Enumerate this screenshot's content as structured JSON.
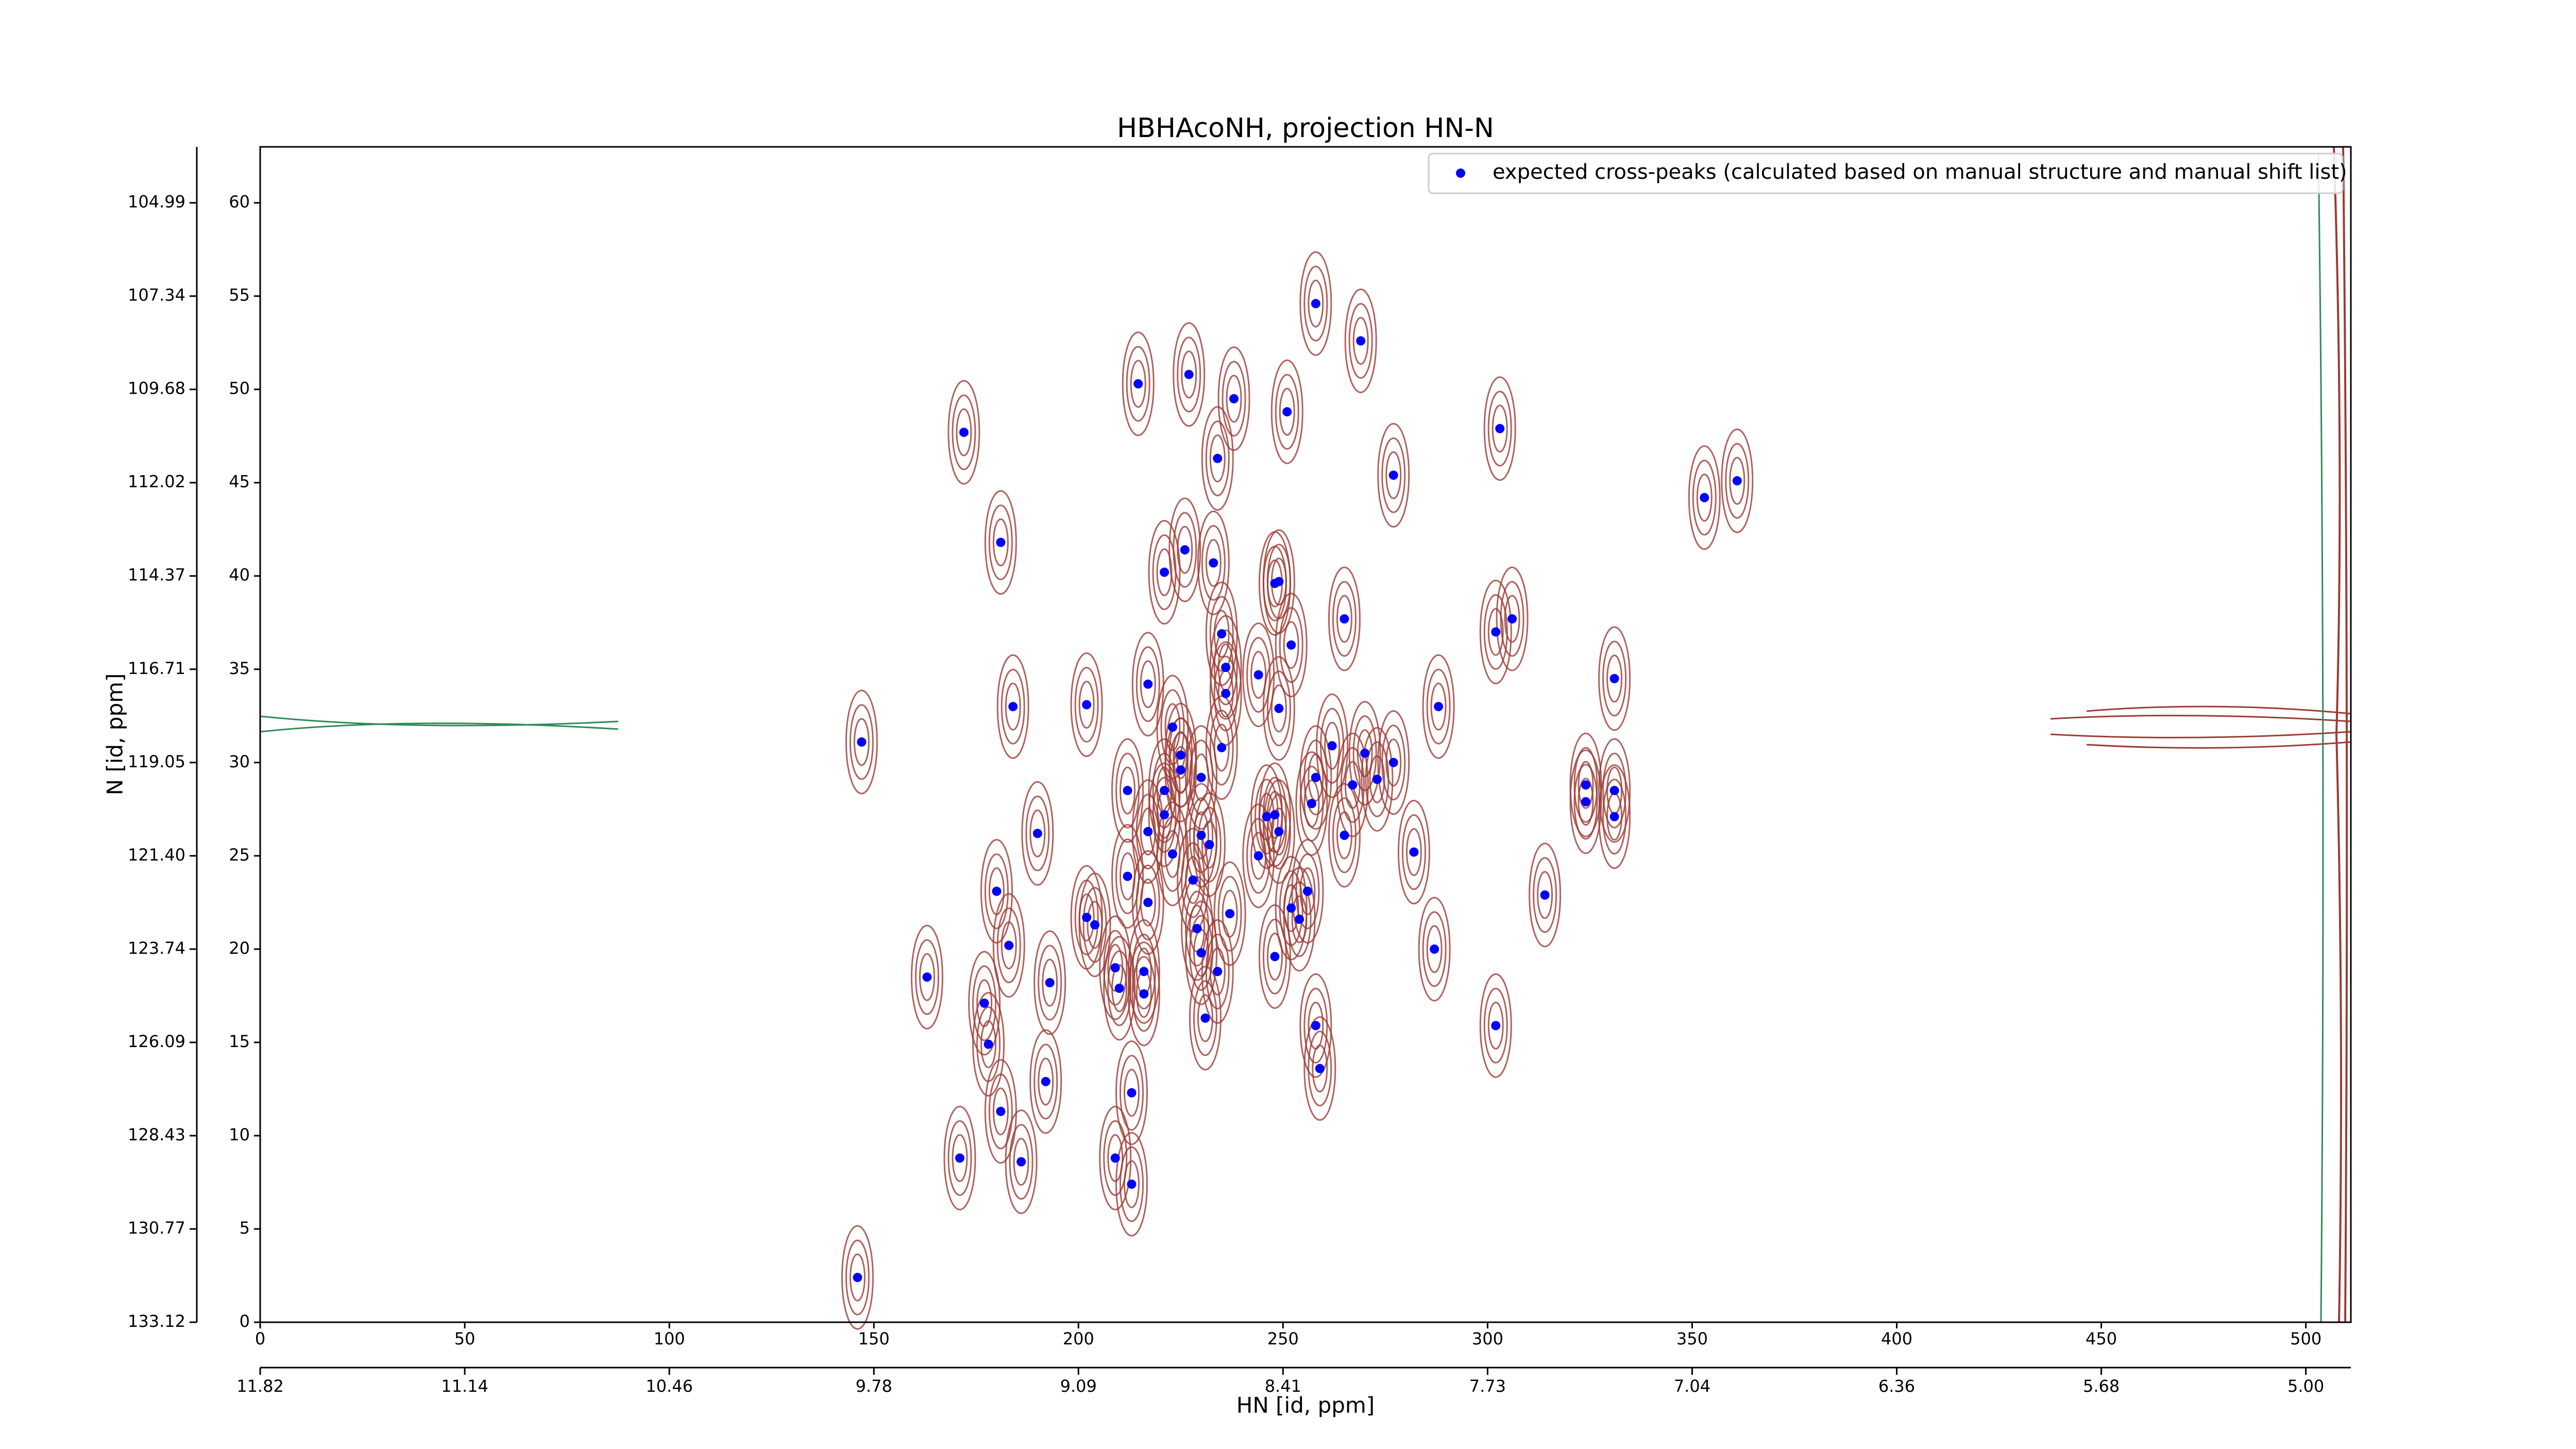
{
  "chart_data": {
    "type": "scatter",
    "title": "HBHAcoNH, projection HN-N",
    "x_label": "HN [id, ppm]",
    "y_label": "N [id, ppm]",
    "xlim": [
      0,
      511
    ],
    "ylim": [
      0,
      63
    ],
    "xticks": [
      0,
      50,
      100,
      150,
      200,
      250,
      300,
      350,
      400,
      450,
      500
    ],
    "yticks": [
      0,
      5,
      10,
      15,
      20,
      25,
      30,
      35,
      40,
      45,
      50,
      55,
      60
    ],
    "x2ticks": [
      {
        "value": 0,
        "label": "11.82"
      },
      {
        "value": 50,
        "label": "11.14"
      },
      {
        "value": 100,
        "label": "10.46"
      },
      {
        "value": 150,
        "label": "9.78"
      },
      {
        "value": 200,
        "label": "9.09"
      },
      {
        "value": 250,
        "label": "8.41"
      },
      {
        "value": 300,
        "label": "7.73"
      },
      {
        "value": 350,
        "label": "7.04"
      },
      {
        "value": 400,
        "label": "6.36"
      },
      {
        "value": 450,
        "label": "5.68"
      },
      {
        "value": 500,
        "label": "5.00"
      }
    ],
    "y2ticks": [
      {
        "value": 0,
        "label": "133.12"
      },
      {
        "value": 5,
        "label": "130.77"
      },
      {
        "value": 10,
        "label": "128.43"
      },
      {
        "value": 15,
        "label": "126.09"
      },
      {
        "value": 20,
        "label": "123.74"
      },
      {
        "value": 25,
        "label": "121.40"
      },
      {
        "value": 30,
        "label": "119.05"
      },
      {
        "value": 35,
        "label": "116.71"
      },
      {
        "value": 40,
        "label": "114.37"
      },
      {
        "value": 45,
        "label": "112.02"
      },
      {
        "value": 50,
        "label": "109.68"
      },
      {
        "value": 55,
        "label": "107.34"
      },
      {
        "value": 60,
        "label": "104.99"
      }
    ],
    "legend": "upper right",
    "contour_color": "#9c3b33",
    "series": [
      {
        "name": "expected cross-peaks (calculated based on manual structure and manual shift list)",
        "color": "#0000ff",
        "x": [
          258,
          269,
          227,
          214.6,
          238,
          251,
          303,
          172,
          234,
          277,
          353,
          361,
          181,
          226,
          233,
          221,
          249,
          248,
          265,
          306,
          302,
          235,
          252,
          236,
          244,
          331,
          217,
          236,
          184,
          202,
          249,
          288,
          223,
          147,
          262,
          235,
          270,
          225,
          225,
          277,
          230,
          258,
          273,
          267,
          324,
          212,
          331,
          221,
          324,
          257,
          331,
          221,
          246,
          248,
          249,
          217,
          230,
          190,
          265,
          232,
          223,
          244,
          282,
          212,
          228,
          180,
          256,
          314,
          217,
          252,
          237,
          202,
          254,
          204,
          229,
          183,
          230,
          287,
          248,
          209,
          216,
          234,
          163,
          193,
          210,
          216,
          177,
          231,
          258,
          302,
          178,
          259,
          192,
          213,
          181,
          171,
          209,
          186,
          213,
          146
        ],
        "y": [
          54.6,
          52.6,
          50.8,
          50.3,
          49.5,
          48.8,
          47.9,
          47.7,
          46.3,
          45.4,
          44.2,
          45.1,
          41.8,
          41.4,
          40.7,
          40.2,
          39.7,
          39.6,
          37.7,
          37.7,
          37.0,
          36.9,
          36.3,
          35.1,
          34.7,
          34.5,
          34.2,
          33.7,
          33.0,
          33.1,
          32.9,
          33.0,
          31.9,
          31.1,
          30.9,
          30.8,
          30.5,
          30.4,
          29.6,
          30.0,
          29.2,
          29.2,
          29.1,
          28.8,
          28.8,
          28.5,
          28.5,
          28.5,
          27.9,
          27.8,
          27.1,
          27.2,
          27.1,
          27.2,
          26.3,
          26.3,
          26.1,
          26.2,
          26.1,
          25.6,
          25.1,
          25.0,
          25.2,
          23.9,
          23.7,
          23.1,
          23.1,
          22.9,
          22.5,
          22.2,
          21.9,
          21.7,
          21.6,
          21.3,
          21.1,
          20.2,
          19.8,
          20.0,
          19.6,
          19.0,
          18.8,
          18.8,
          18.5,
          18.2,
          17.9,
          17.6,
          17.1,
          16.3,
          15.9,
          15.9,
          14.9,
          13.6,
          12.9,
          12.3,
          11.3,
          8.8,
          8.8,
          8.6,
          7.4,
          2.4
        ]
      }
    ]
  }
}
